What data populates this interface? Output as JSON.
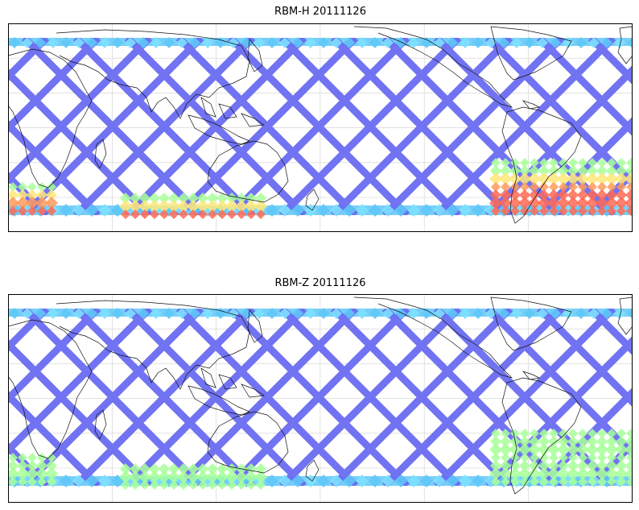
{
  "panels": [
    {
      "title": "RBM-H 20111126",
      "swath_color": "#6a6cf2",
      "band_colors": [
        "#5fc7f7",
        "#7de0ff",
        "#a8ff9a",
        "#ffe87a",
        "#ff9a5a",
        "#ff6a55"
      ],
      "hot_region": "south",
      "hot_intensity": 1.0
    },
    {
      "title": "RBM-Z 20111126",
      "swath_color": "#6a6cf2",
      "band_colors": [
        "#5fc7f7",
        "#7de0ff",
        "#a8ff9a"
      ],
      "hot_region": "south",
      "hot_intensity": 0.35
    }
  ]
}
